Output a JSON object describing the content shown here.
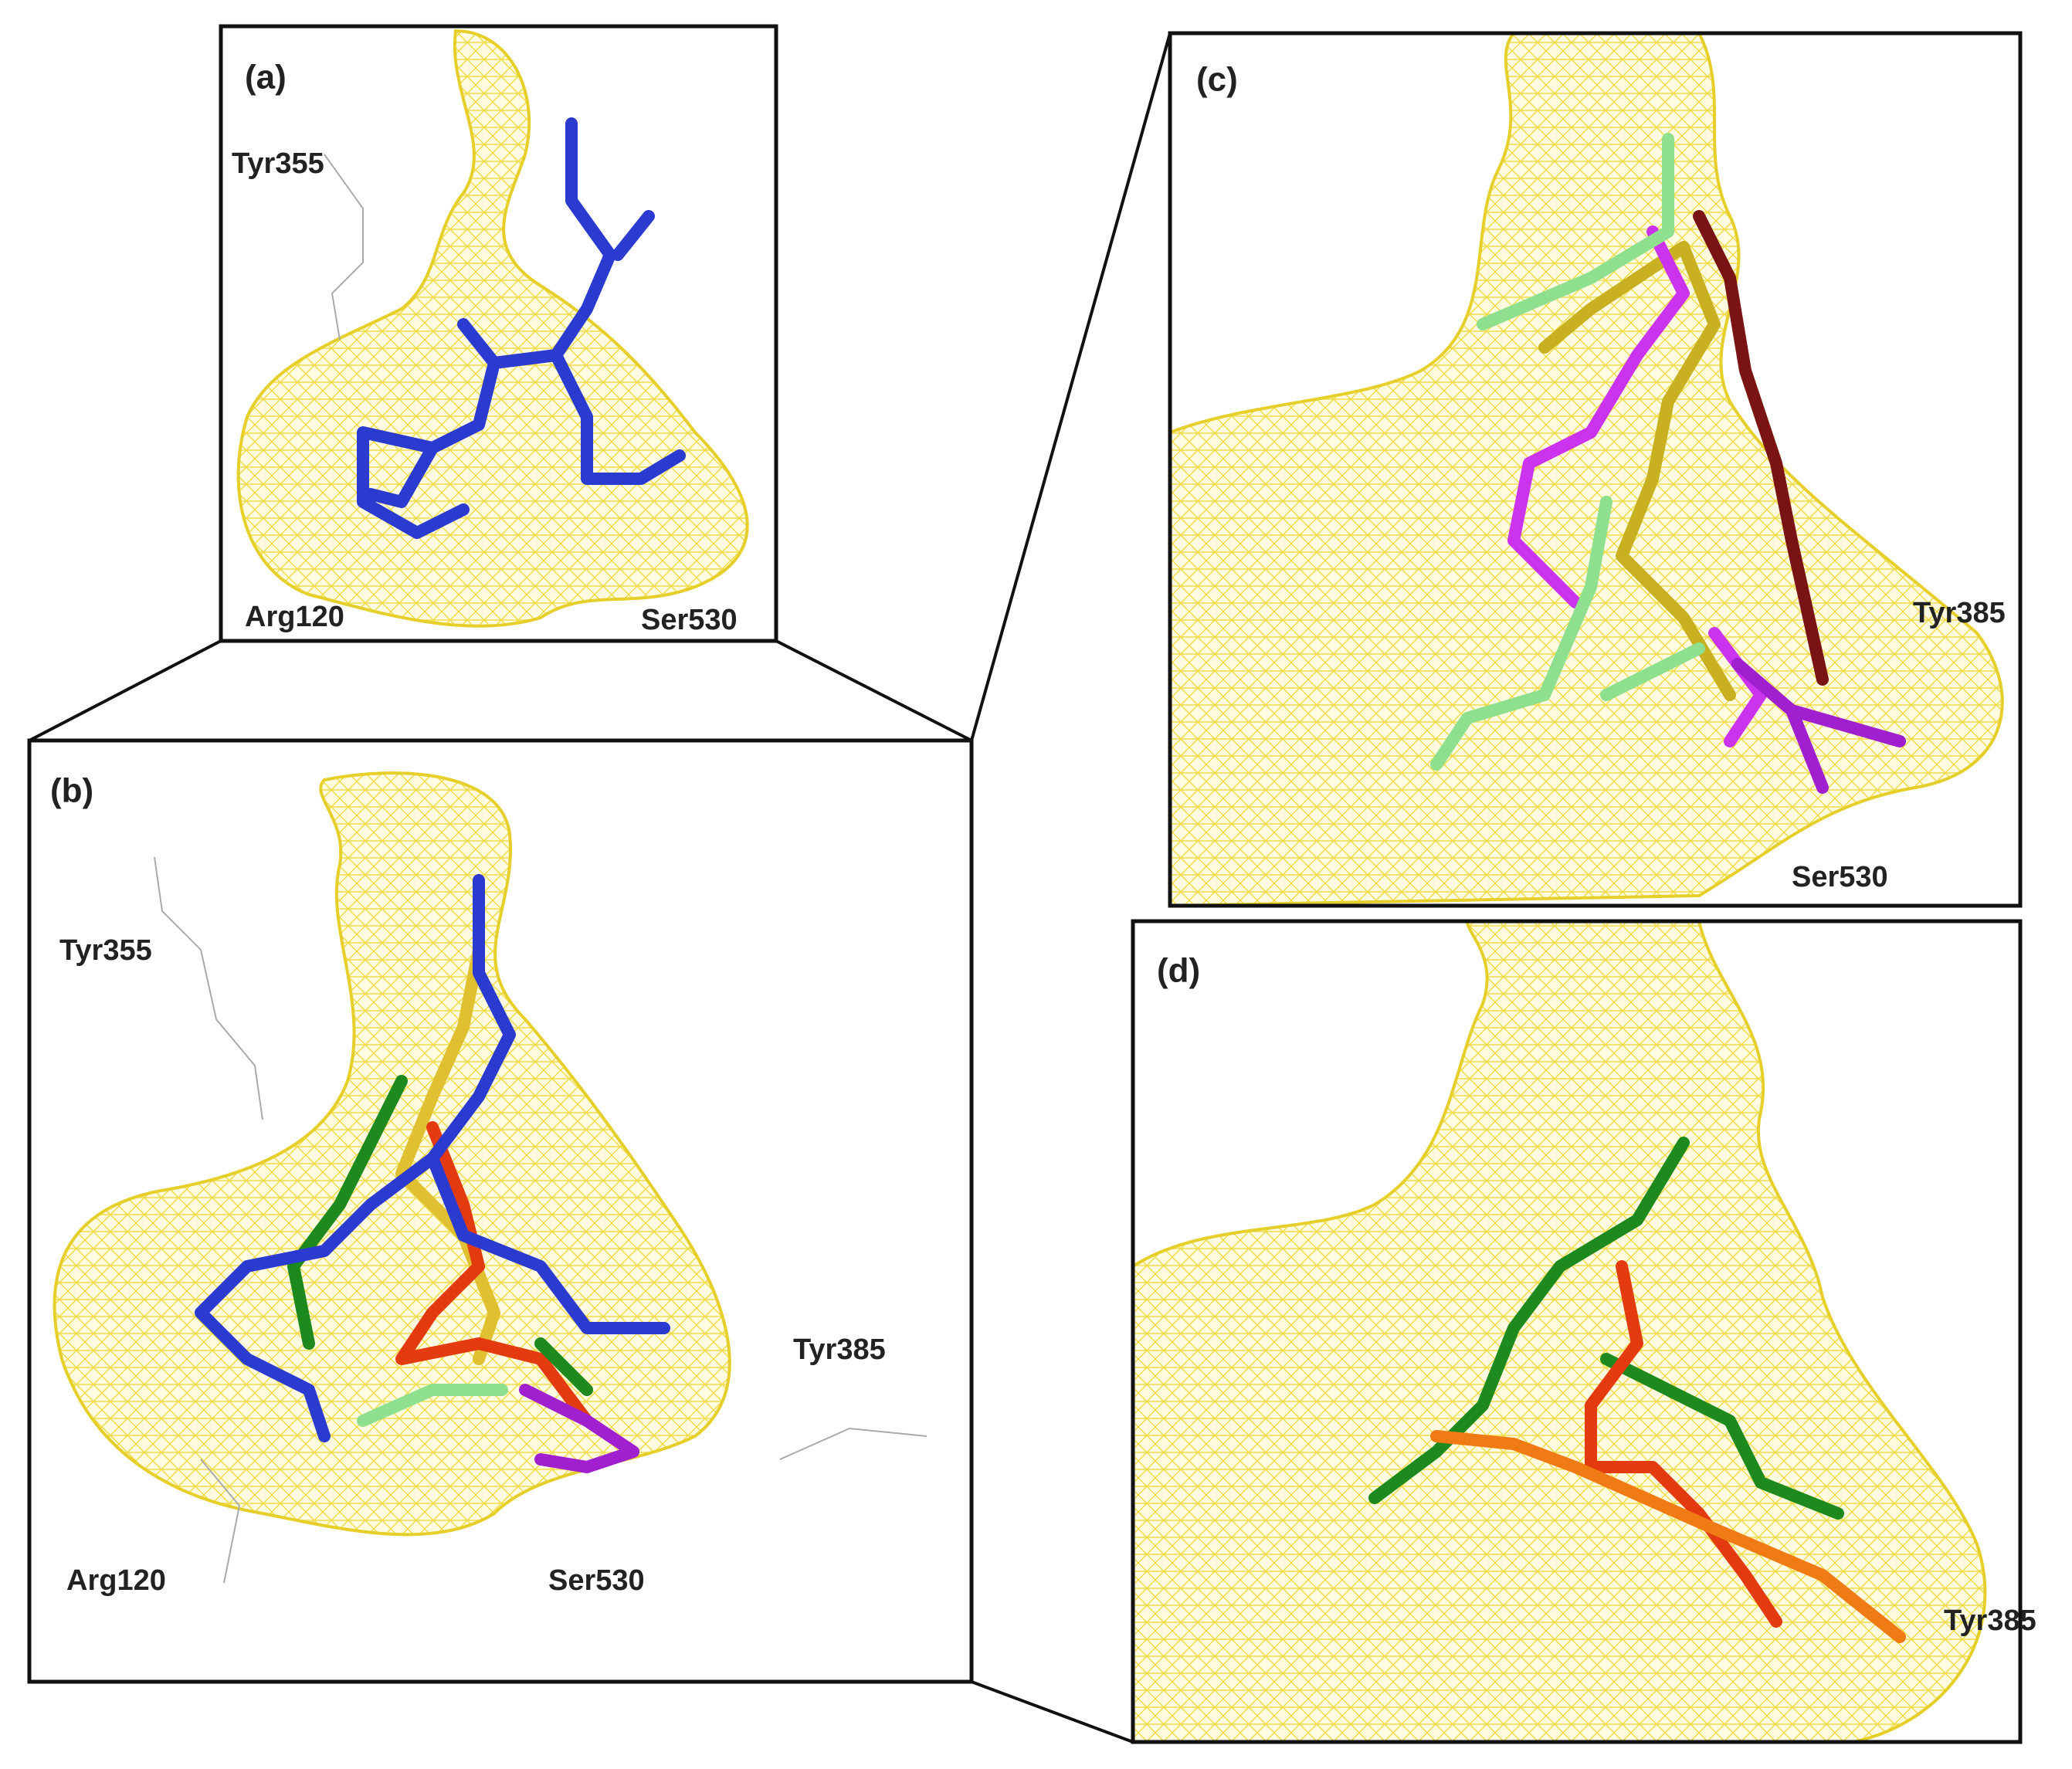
{
  "panels": [
    {
      "label": "(a)",
      "residues": [
        "Tyr355",
        "Arg120",
        "Ser530"
      ]
    },
    {
      "label": "(b)",
      "residues": [
        "Tyr355",
        "Tyr385",
        "Arg120",
        "Ser530"
      ]
    },
    {
      "label": "(c)",
      "residues": [
        "Tyr385",
        "Ser530"
      ]
    },
    {
      "label": "(d)",
      "residues": [
        "Tyr385"
      ]
    }
  ]
}
